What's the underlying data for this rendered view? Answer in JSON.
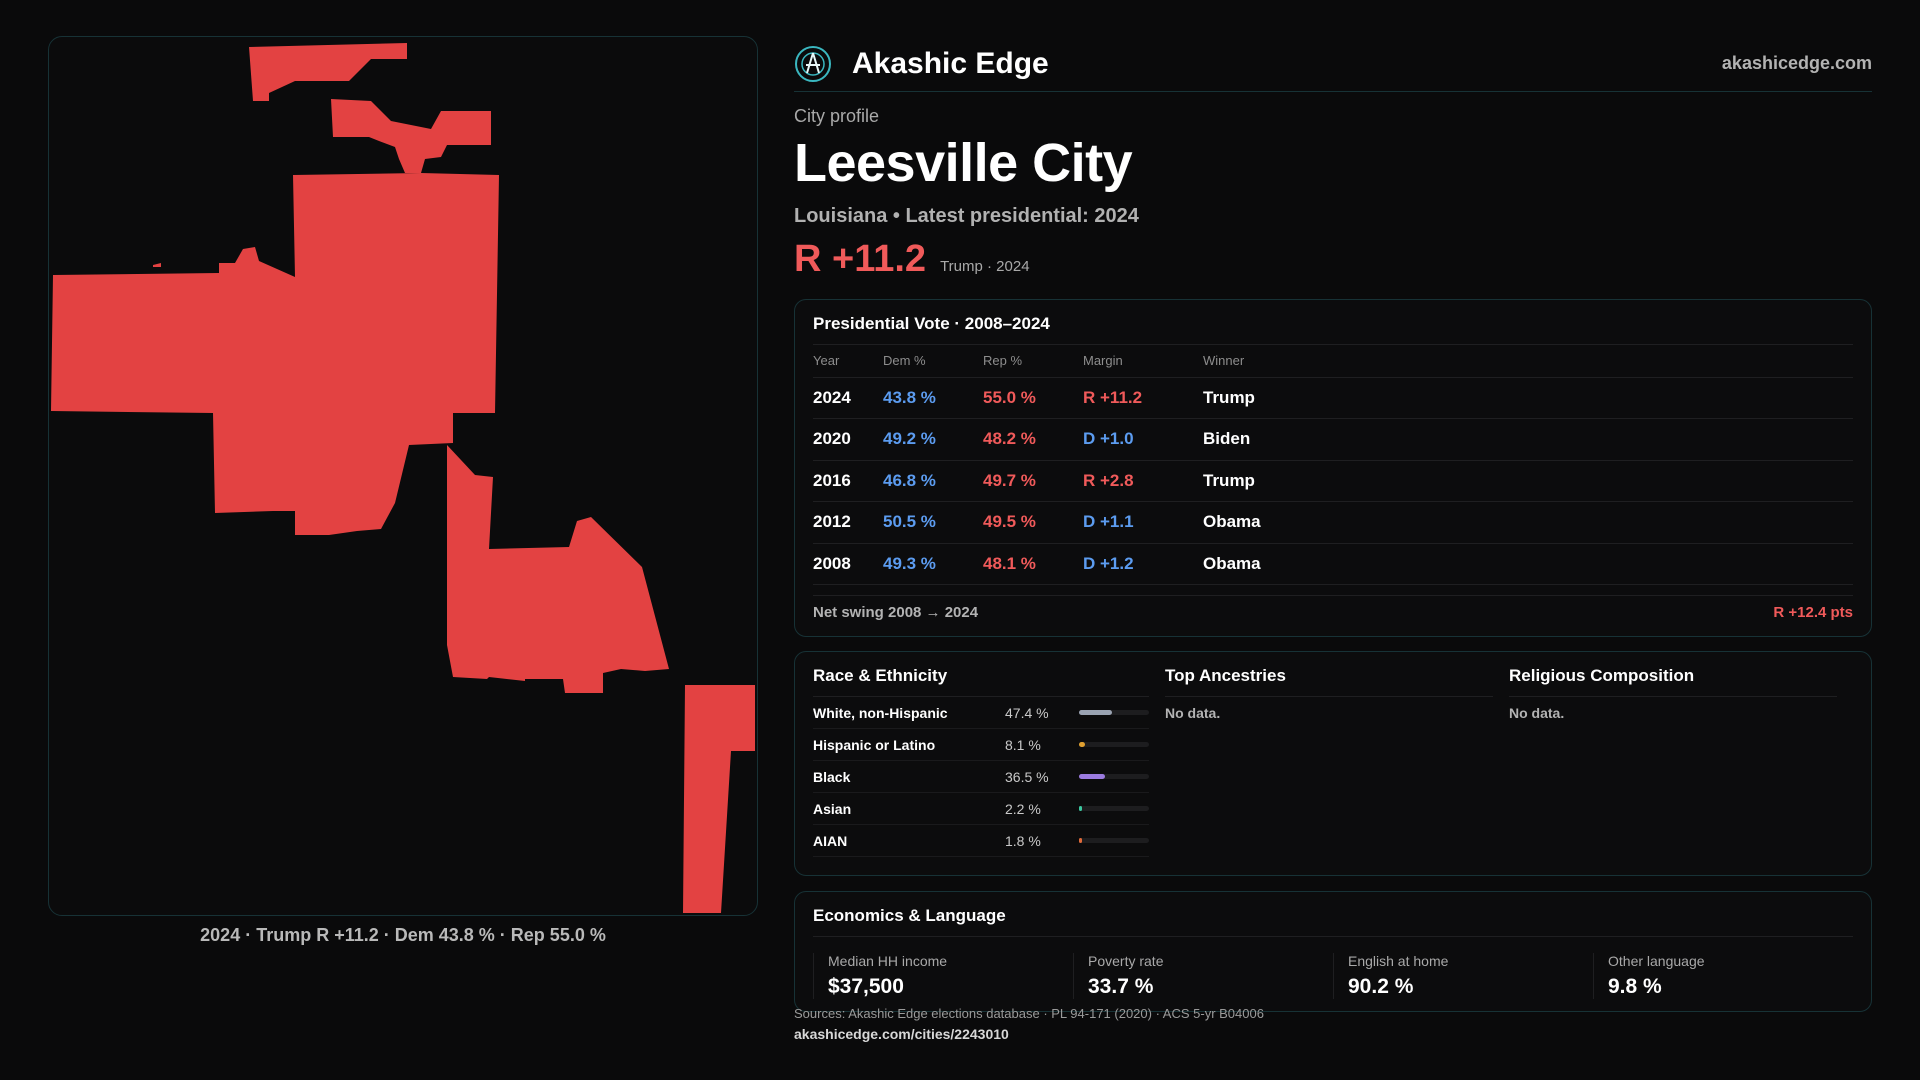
{
  "brand": {
    "name": "Akashic Edge",
    "url": "akashicedge.com"
  },
  "profile": {
    "kicker": "City profile",
    "city": "Leesville City",
    "subtitle": "Louisiana • Latest presidential: 2024",
    "margin": "R +11.2",
    "margin_note": "Trump · 2024"
  },
  "map": {
    "caption": "2024 · Trump R +11.2 · Dem 43.8 % · Rep 55.0 %",
    "fill_color": "#e34242"
  },
  "presidential": {
    "title": "Presidential Vote · 2008–2024",
    "headers": [
      "Year",
      "Dem %",
      "Rep %",
      "Margin",
      "Winner"
    ],
    "rows": [
      {
        "year": "2024",
        "dem": "43.8 %",
        "rep": "55.0 %",
        "margin": "R +11.2",
        "party": "R",
        "winner": "Trump"
      },
      {
        "year": "2020",
        "dem": "49.2 %",
        "rep": "48.2 %",
        "margin": "D +1.0",
        "party": "D",
        "winner": "Biden"
      },
      {
        "year": "2016",
        "dem": "46.8 %",
        "rep": "49.7 %",
        "margin": "R +2.8",
        "party": "R",
        "winner": "Trump"
      },
      {
        "year": "2012",
        "dem": "50.5 %",
        "rep": "49.5 %",
        "margin": "D +1.1",
        "party": "D",
        "winner": "Obama"
      },
      {
        "year": "2008",
        "dem": "49.3 %",
        "rep": "48.1 %",
        "margin": "D +1.2",
        "party": "D",
        "winner": "Obama"
      }
    ],
    "swing_label": "Net swing 2008 → 2024",
    "swing_value": "R +12.4 pts"
  },
  "race": {
    "title": "Race & Ethnicity",
    "rows": [
      {
        "label": "White, non-Hispanic",
        "value": "47.4 %",
        "share": 0.474,
        "color": "#9aa3b2"
      },
      {
        "label": "Hispanic or Latino",
        "value": "8.1 %",
        "share": 0.081,
        "color": "#e0a030"
      },
      {
        "label": "Black",
        "value": "36.5 %",
        "share": 0.365,
        "color": "#9b7be0"
      },
      {
        "label": "Asian",
        "value": "2.2 %",
        "share": 0.022,
        "color": "#3cc8a0"
      },
      {
        "label": "AIAN",
        "value": "1.8 %",
        "share": 0.018,
        "color": "#e06a3a"
      }
    ]
  },
  "ancestries": {
    "title": "Top Ancestries",
    "empty": "No data."
  },
  "religion": {
    "title": "Religious Composition",
    "empty": "No data."
  },
  "economics": {
    "title": "Economics & Language",
    "items": [
      {
        "label": "Median HH income",
        "value": "$37,500"
      },
      {
        "label": "Poverty rate",
        "value": "33.7 %"
      },
      {
        "label": "English at home",
        "value": "90.2 %"
      },
      {
        "label": "Other language",
        "value": "9.8 %"
      }
    ]
  },
  "footer": {
    "sources": "Sources: Akashic Edge elections database · PL 94-171 (2020) · ACS 5-yr B04006",
    "url": "akashicedge.com/cities/2243010"
  }
}
